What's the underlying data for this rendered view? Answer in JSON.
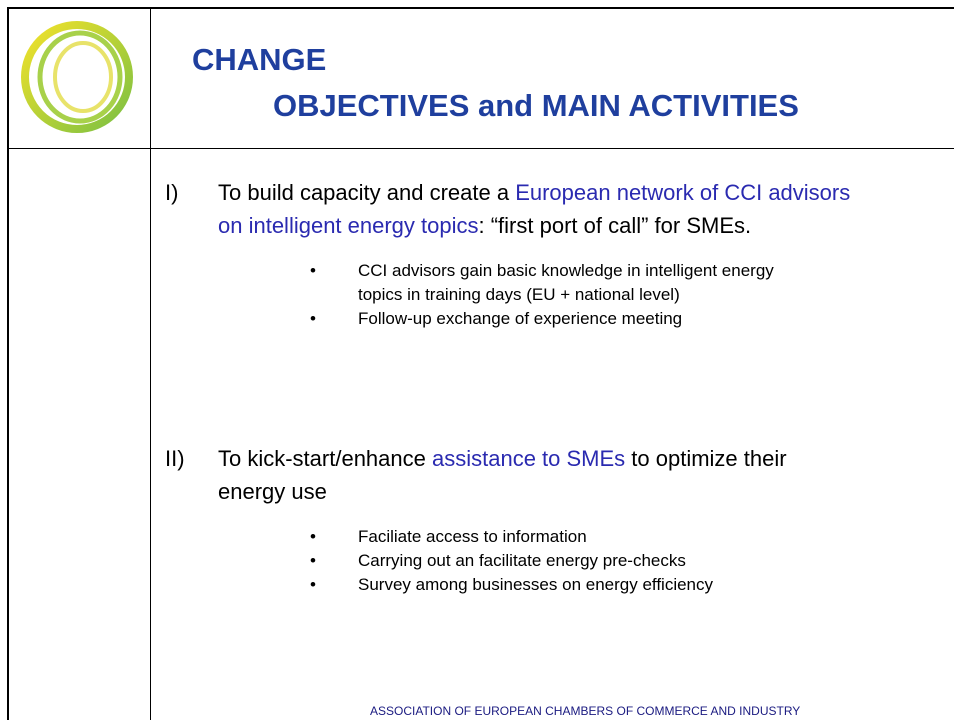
{
  "header": {
    "title_lines": [
      "CHANGE",
      "OBJECTIVES and MAIN ACTIVITIES"
    ]
  },
  "items": [
    {
      "marker": "I)",
      "segments": [
        {
          "text": "To build capacity and create a ",
          "highlight": false
        },
        {
          "text": "European network of CCI advisors on intelligent energy topics",
          "highlight": true
        },
        {
          "text": ": “first port of call” for SMEs.",
          "highlight": false
        }
      ],
      "bullets": [
        "CCI advisors gain basic knowledge in intelligent energy topics in training days (EU + national level)",
        "Follow-up exchange of experience meeting"
      ]
    },
    {
      "marker": "II)",
      "segments": [
        {
          "text": "To kick-start/enhance ",
          "highlight": false
        },
        {
          "text": "assistance to SMEs",
          "highlight": true
        },
        {
          "text": " to optimize their energy use",
          "highlight": false
        }
      ],
      "bullets": [
        "Faciliate access to information",
        "Carrying out an facilitate energy pre-checks",
        "Survey among businesses on energy efficiency"
      ]
    }
  ],
  "footer": {
    "text": "ASSOCIATION OF EUROPEAN CHAMBERS OF COMMERCE AND INDUSTRY"
  }
}
